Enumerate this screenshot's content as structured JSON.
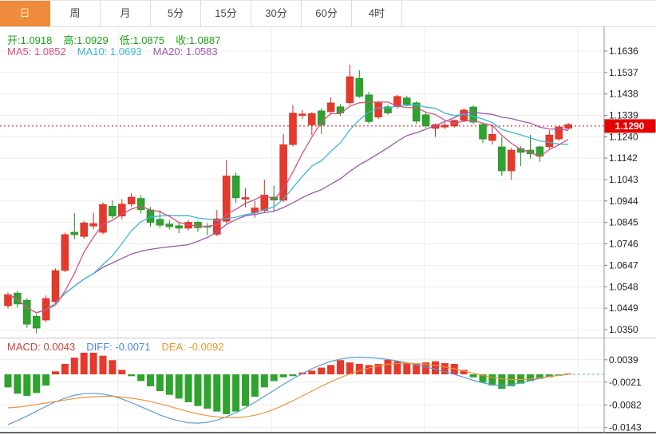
{
  "toolbar": {
    "tabs": [
      {
        "name": "day",
        "label": "日",
        "active": true
      },
      {
        "name": "week",
        "label": "周",
        "active": false
      },
      {
        "name": "month",
        "label": "月",
        "active": false
      },
      {
        "name": "5min",
        "label": "5分",
        "active": false
      },
      {
        "name": "15min",
        "label": "15分",
        "active": false
      },
      {
        "name": "30min",
        "label": "30分",
        "active": false
      },
      {
        "name": "60min",
        "label": "60分",
        "active": false
      },
      {
        "name": "4hour",
        "label": "4时",
        "active": false
      }
    ]
  },
  "legend": {
    "open": "开:1.0918",
    "high": "高:1.0929",
    "low": "低:1.0875",
    "close": "收:1.0887",
    "ma5": "MA5: 1.0852",
    "ma10": "MA10: 1.0693",
    "ma20": "MA20: 1.0583"
  },
  "macd_legend": {
    "macd": "MACD: 0.0043",
    "diff": "DIFF: -0.0071",
    "dea": "DEA: -0.0092"
  },
  "colors": {
    "up": "#e5392c",
    "up_stroke": "#c92b20",
    "down": "#2ea32e",
    "down_stroke": "#218527",
    "ma5": "#d6537c",
    "ma10": "#3fb6d8",
    "ma20": "#9c58ae",
    "diff_line": "#5b9bd5",
    "dea_line": "#e8963a",
    "ohlc_text": "#1ca01c",
    "macd_text": "#c94442",
    "diff_text": "#4a89dc",
    "dea_text": "#e8962e",
    "grid": "#ececec",
    "axis_line": "#999999",
    "label": "#222222",
    "current_price": "#e60000",
    "zero_dash": "#59b0c9",
    "active_tab_bg": "#ee8b3c",
    "active_tab_text": "#fdeeb0"
  },
  "chart_data": {
    "type": "candlestick_with_macd",
    "title": "",
    "price_axis": {
      "ticks": [
        1.1636,
        1.1537,
        1.1438,
        1.1339,
        1.124,
        1.1142,
        1.1043,
        1.0944,
        1.0845,
        1.0746,
        1.0647,
        1.0548,
        1.0449,
        1.035
      ],
      "top": 1.1636,
      "bottom": 1.035
    },
    "current_price": 1.129,
    "current_price_label": "1.1290",
    "ma_periods": [
      5,
      10,
      20
    ],
    "candles": [
      [
        1.046,
        1.0522,
        1.0448,
        1.0512
      ],
      [
        1.0519,
        1.053,
        1.0452,
        1.0468
      ],
      [
        1.0486,
        1.0495,
        1.0358,
        1.0375
      ],
      [
        1.0412,
        1.0422,
        1.0332,
        1.0357
      ],
      [
        1.0394,
        1.0508,
        1.0385,
        1.0494
      ],
      [
        1.0479,
        1.0632,
        1.047,
        1.0623
      ],
      [
        1.0623,
        1.0798,
        1.0615,
        1.0789
      ],
      [
        1.08,
        1.0888,
        1.0768,
        1.0788
      ],
      [
        1.078,
        1.0852,
        1.077,
        1.0843
      ],
      [
        1.0828,
        1.089,
        1.0812,
        1.084
      ],
      [
        1.0799,
        1.0937,
        1.079,
        1.0928
      ],
      [
        1.092,
        1.0946,
        1.0862,
        1.0874
      ],
      [
        1.0874,
        1.0952,
        1.086,
        1.093
      ],
      [
        1.093,
        1.098,
        1.0918,
        1.0962
      ],
      [
        1.0956,
        1.0972,
        1.0886,
        1.0903
      ],
      [
        1.0903,
        1.0916,
        1.0826,
        1.0845
      ],
      [
        1.086,
        1.0902,
        1.082,
        1.0832
      ],
      [
        1.0838,
        1.0856,
        1.0812,
        1.0825
      ],
      [
        1.083,
        1.0846,
        1.0796,
        1.0818
      ],
      [
        1.0818,
        1.0856,
        1.0808,
        1.0846
      ],
      [
        1.0846,
        1.0852,
        1.0802,
        1.082
      ],
      [
        1.0828,
        1.0842,
        1.0786,
        1.0826
      ],
      [
        1.079,
        1.0902,
        1.0782,
        1.0862
      ],
      [
        1.085,
        1.1132,
        1.084,
        1.106
      ],
      [
        1.106,
        1.1074,
        1.0936,
        1.0958
      ],
      [
        1.0952,
        1.1002,
        1.0916,
        1.096
      ],
      [
        1.089,
        1.0944,
        1.0866,
        1.0912
      ],
      [
        1.09,
        1.1042,
        1.0888,
        1.0972
      ],
      [
        1.0962,
        1.1016,
        1.0898,
        1.0948
      ],
      [
        1.0947,
        1.1252,
        1.094,
        1.1204
      ],
      [
        1.1204,
        1.1388,
        1.1196,
        1.135
      ],
      [
        1.1338,
        1.1364,
        1.1322,
        1.1346
      ],
      [
        1.1295,
        1.1354,
        1.1248,
        1.1348
      ],
      [
        1.136,
        1.1372,
        1.1254,
        1.1295
      ],
      [
        1.1356,
        1.1422,
        1.1342,
        1.1397
      ],
      [
        1.1379,
        1.139,
        1.1338,
        1.135
      ],
      [
        1.1397,
        1.1574,
        1.1388,
        1.1518
      ],
      [
        1.151,
        1.1547,
        1.142,
        1.1427
      ],
      [
        1.1434,
        1.1448,
        1.1302,
        1.131
      ],
      [
        1.1331,
        1.1406,
        1.1322,
        1.1397
      ],
      [
        1.1379,
        1.1388,
        1.1342,
        1.135
      ],
      [
        1.1379,
        1.1434,
        1.137,
        1.1427
      ],
      [
        1.142,
        1.143,
        1.138,
        1.139
      ],
      [
        1.1397,
        1.1404,
        1.13,
        1.1312
      ],
      [
        1.1342,
        1.135,
        1.1282,
        1.129
      ],
      [
        1.1279,
        1.1302,
        1.124,
        1.1297
      ],
      [
        1.1285,
        1.1308,
        1.1276,
        1.1295
      ],
      [
        1.129,
        1.132,
        1.1282,
        1.1316
      ],
      [
        1.1316,
        1.1372,
        1.1308,
        1.1364
      ],
      [
        1.1378,
        1.1386,
        1.13,
        1.1308
      ],
      [
        1.1297,
        1.1306,
        1.1212,
        1.123
      ],
      [
        1.1223,
        1.1297,
        1.1205,
        1.1252
      ],
      [
        1.1194,
        1.124,
        1.106,
        1.1083
      ],
      [
        1.1083,
        1.119,
        1.1042,
        1.1179
      ],
      [
        1.1186,
        1.1196,
        1.1105,
        1.1168
      ],
      [
        1.1179,
        1.1249,
        1.114,
        1.1161
      ],
      [
        1.1194,
        1.12,
        1.1124,
        1.115
      ],
      [
        1.1194,
        1.1271,
        1.1185,
        1.1249
      ],
      [
        1.123,
        1.1292,
        1.1222,
        1.1286
      ],
      [
        1.1279,
        1.1305,
        1.1272,
        1.1297
      ]
    ],
    "macd": {
      "ticks": [
        0.0039,
        -0.0021,
        -0.0082,
        -0.0143
      ],
      "hist": [
        -0.0035,
        -0.0052,
        -0.0058,
        -0.005,
        -0.003,
        0.0008,
        0.0028,
        0.0045,
        0.0058,
        0.0058,
        0.005,
        0.0038,
        0.0012,
        -0.0005,
        -0.0018,
        -0.0032,
        -0.0045,
        -0.0055,
        -0.0065,
        -0.0075,
        -0.0085,
        -0.0092,
        -0.01,
        -0.0107,
        -0.01,
        -0.0085,
        -0.006,
        -0.0035,
        -0.0018,
        -0.0008,
        -0.0005,
        0.0005,
        0.001,
        0.0018,
        0.0025,
        0.0038,
        0.0032,
        0.0028,
        0.0025,
        0.0028,
        0.0039,
        0.0035,
        0.003,
        0.0028,
        0.0032,
        0.0035,
        0.003,
        0.0028,
        0.0012,
        -0.0008,
        -0.0022,
        -0.003,
        -0.0039,
        -0.0032,
        -0.0025,
        -0.0018,
        -0.0012,
        -0.0008,
        -0.0004,
        0.0002
      ],
      "diff": [
        -0.0135,
        -0.0124,
        -0.0112,
        -0.0099,
        -0.0086,
        -0.0074,
        -0.0064,
        -0.0056,
        -0.0052,
        -0.0051,
        -0.0053,
        -0.0058,
        -0.0066,
        -0.0076,
        -0.0087,
        -0.0098,
        -0.0109,
        -0.0118,
        -0.0125,
        -0.013,
        -0.0131,
        -0.0129,
        -0.0123,
        -0.0114,
        -0.0103,
        -0.009,
        -0.0075,
        -0.0059,
        -0.0043,
        -0.0027,
        -0.0012,
        0.0002,
        0.0015,
        0.0026,
        0.0035,
        0.0041,
        0.0045,
        0.0046,
        0.0045,
        0.0043,
        0.004,
        0.0036,
        0.0031,
        0.0026,
        0.002,
        0.0014,
        0.0007,
        0.0,
        -0.0008,
        -0.0016,
        -0.0023,
        -0.0028,
        -0.003,
        -0.0028,
        -0.0023,
        -0.0017,
        -0.0011,
        -0.0006,
        -0.0002,
        0.0
      ],
      "dea": [
        -0.009,
        -0.0088,
        -0.0085,
        -0.0081,
        -0.0077,
        -0.0073,
        -0.0069,
        -0.0065,
        -0.0062,
        -0.006,
        -0.0059,
        -0.0059,
        -0.0061,
        -0.0064,
        -0.0068,
        -0.0073,
        -0.0079,
        -0.0086,
        -0.0093,
        -0.01,
        -0.0106,
        -0.0111,
        -0.0114,
        -0.0116,
        -0.0116,
        -0.0114,
        -0.011,
        -0.0103,
        -0.0094,
        -0.0083,
        -0.0071,
        -0.0058,
        -0.0045,
        -0.0032,
        -0.002,
        -0.0009,
        0.0001,
        0.001,
        0.0017,
        0.0023,
        0.0027,
        0.0029,
        0.003,
        0.0029,
        0.0027,
        0.0024,
        0.002,
        0.0015,
        0.0009,
        0.0003,
        -0.0003,
        -0.0008,
        -0.0012,
        -0.0014,
        -0.0014,
        -0.0012,
        -0.0009,
        -0.0006,
        -0.0003,
        0.0
      ]
    },
    "legend_position": "top-left",
    "grid": true
  }
}
